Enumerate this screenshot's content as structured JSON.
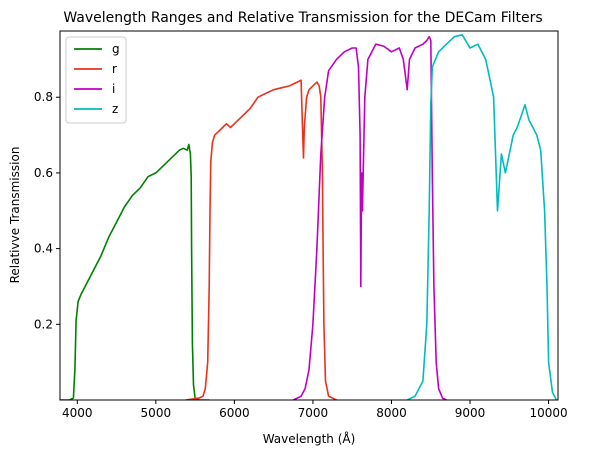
{
  "chart_data": {
    "type": "line",
    "title": "Wavelength Ranges and Relative Transmission for the DECam Filters",
    "xlabel": "Wavelength (Å)",
    "ylabel": "Relativve Transmission",
    "xlim": [
      3780,
      10120
    ],
    "ylim": [
      0.0,
      0.975
    ],
    "xticks": [
      4000,
      5000,
      6000,
      7000,
      8000,
      9000,
      10000
    ],
    "yticks": [
      0.2,
      0.4,
      0.6,
      0.8
    ],
    "grid": false,
    "legend_position": "top-left",
    "series": [
      {
        "name": "g",
        "color": "#008000",
        "points": [
          [
            3780,
            0.0
          ],
          [
            3900,
            0.0
          ],
          [
            3950,
            0.005
          ],
          [
            3970,
            0.08
          ],
          [
            3985,
            0.21
          ],
          [
            4000,
            0.24
          ],
          [
            4010,
            0.26
          ],
          [
            4050,
            0.28
          ],
          [
            4100,
            0.3
          ],
          [
            4200,
            0.34
          ],
          [
            4300,
            0.38
          ],
          [
            4400,
            0.43
          ],
          [
            4500,
            0.47
          ],
          [
            4600,
            0.51
          ],
          [
            4700,
            0.54
          ],
          [
            4800,
            0.56
          ],
          [
            4900,
            0.59
          ],
          [
            5000,
            0.6
          ],
          [
            5100,
            0.62
          ],
          [
            5200,
            0.64
          ],
          [
            5300,
            0.66
          ],
          [
            5350,
            0.665
          ],
          [
            5400,
            0.66
          ],
          [
            5420,
            0.675
          ],
          [
            5440,
            0.65
          ],
          [
            5450,
            0.59
          ],
          [
            5455,
            0.4
          ],
          [
            5465,
            0.15
          ],
          [
            5480,
            0.04
          ],
          [
            5500,
            0.005
          ],
          [
            5550,
            0.0
          ],
          [
            5680,
            0.0
          ]
        ]
      },
      {
        "name": "r",
        "color": "#e8321a",
        "points": [
          [
            5380,
            0.0
          ],
          [
            5550,
            0.005
          ],
          [
            5600,
            0.01
          ],
          [
            5630,
            0.03
          ],
          [
            5660,
            0.1
          ],
          [
            5680,
            0.3
          ],
          [
            5690,
            0.5
          ],
          [
            5700,
            0.63
          ],
          [
            5720,
            0.68
          ],
          [
            5750,
            0.7
          ],
          [
            5800,
            0.71
          ],
          [
            5850,
            0.72
          ],
          [
            5900,
            0.73
          ],
          [
            5950,
            0.72
          ],
          [
            6000,
            0.73
          ],
          [
            6050,
            0.74
          ],
          [
            6100,
            0.75
          ],
          [
            6200,
            0.77
          ],
          [
            6300,
            0.8
          ],
          [
            6400,
            0.81
          ],
          [
            6500,
            0.82
          ],
          [
            6600,
            0.825
          ],
          [
            6700,
            0.83
          ],
          [
            6800,
            0.84
          ],
          [
            6850,
            0.845
          ],
          [
            6870,
            0.7
          ],
          [
            6880,
            0.64
          ],
          [
            6890,
            0.72
          ],
          [
            6920,
            0.8
          ],
          [
            6950,
            0.82
          ],
          [
            7000,
            0.83
          ],
          [
            7050,
            0.84
          ],
          [
            7080,
            0.83
          ],
          [
            7100,
            0.8
          ],
          [
            7120,
            0.6
          ],
          [
            7130,
            0.4
          ],
          [
            7140,
            0.2
          ],
          [
            7160,
            0.05
          ],
          [
            7200,
            0.01
          ],
          [
            7300,
            0.0
          ]
        ]
      },
      {
        "name": "i",
        "color": "#c000c0",
        "points": [
          [
            6750,
            0.0
          ],
          [
            6800,
            0.005
          ],
          [
            6850,
            0.01
          ],
          [
            6900,
            0.03
          ],
          [
            6950,
            0.08
          ],
          [
            7000,
            0.2
          ],
          [
            7050,
            0.4
          ],
          [
            7100,
            0.65
          ],
          [
            7150,
            0.8
          ],
          [
            7200,
            0.87
          ],
          [
            7300,
            0.9
          ],
          [
            7400,
            0.92
          ],
          [
            7500,
            0.93
          ],
          [
            7550,
            0.93
          ],
          [
            7580,
            0.88
          ],
          [
            7600,
            0.7
          ],
          [
            7610,
            0.3
          ],
          [
            7620,
            0.6
          ],
          [
            7630,
            0.5
          ],
          [
            7640,
            0.6
          ],
          [
            7660,
            0.8
          ],
          [
            7700,
            0.9
          ],
          [
            7800,
            0.94
          ],
          [
            7900,
            0.935
          ],
          [
            8000,
            0.92
          ],
          [
            8100,
            0.93
          ],
          [
            8150,
            0.9
          ],
          [
            8200,
            0.82
          ],
          [
            8230,
            0.9
          ],
          [
            8300,
            0.93
          ],
          [
            8400,
            0.94
          ],
          [
            8450,
            0.95
          ],
          [
            8480,
            0.96
          ],
          [
            8500,
            0.95
          ],
          [
            8520,
            0.6
          ],
          [
            8540,
            0.3
          ],
          [
            8570,
            0.1
          ],
          [
            8600,
            0.03
          ],
          [
            8650,
            0.005
          ],
          [
            8700,
            0.0
          ]
        ]
      },
      {
        "name": "z",
        "color": "#00bcbc",
        "points": [
          [
            8200,
            0.0
          ],
          [
            8300,
            0.01
          ],
          [
            8400,
            0.05
          ],
          [
            8450,
            0.2
          ],
          [
            8480,
            0.5
          ],
          [
            8500,
            0.78
          ],
          [
            8520,
            0.88
          ],
          [
            8600,
            0.92
          ],
          [
            8700,
            0.94
          ],
          [
            8800,
            0.96
          ],
          [
            8900,
            0.965
          ],
          [
            9000,
            0.93
          ],
          [
            9100,
            0.94
          ],
          [
            9200,
            0.9
          ],
          [
            9250,
            0.85
          ],
          [
            9300,
            0.8
          ],
          [
            9350,
            0.5
          ],
          [
            9400,
            0.65
          ],
          [
            9450,
            0.6
          ],
          [
            9500,
            0.65
          ],
          [
            9550,
            0.7
          ],
          [
            9600,
            0.72
          ],
          [
            9650,
            0.75
          ],
          [
            9700,
            0.78
          ],
          [
            9750,
            0.74
          ],
          [
            9800,
            0.72
          ],
          [
            9850,
            0.7
          ],
          [
            9900,
            0.66
          ],
          [
            9950,
            0.5
          ],
          [
            9980,
            0.3
          ],
          [
            10000,
            0.1
          ],
          [
            10050,
            0.02
          ],
          [
            10100,
            0.0
          ]
        ]
      }
    ]
  }
}
